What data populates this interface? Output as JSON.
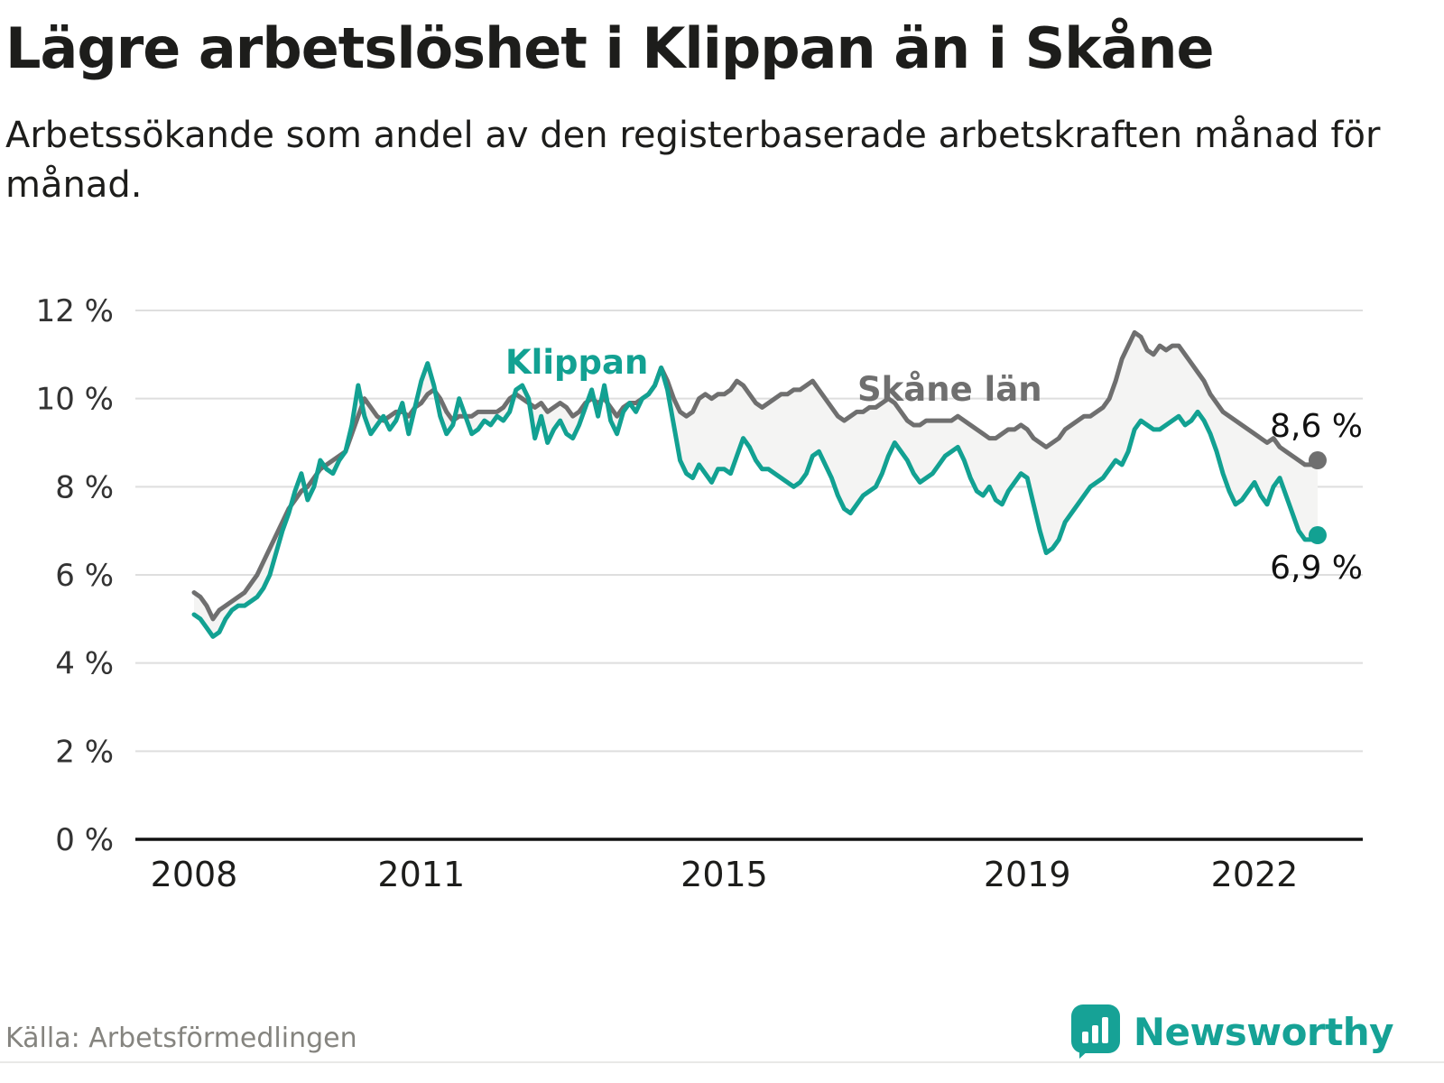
{
  "header": {
    "title": "Lägre arbetslöshet i Klippan än i Skåne",
    "subtitle": "Arbetssökande som andel av den registerbaserade arbetskraften månad för månad."
  },
  "footer": {
    "source": "Källa: Arbetsförmedlingen",
    "brand": "Newsworthy"
  },
  "colors": {
    "klippan": "#12a192",
    "skane": "#6f6f6f",
    "band": "#f4f4f3",
    "grid": "#dedede",
    "axis": "#111111",
    "brand": "#16a296"
  },
  "chart_data": {
    "type": "line",
    "title": "Lägre arbetslöshet i Klippan än i Skåne",
    "unit": "%",
    "x_start": "2008-01",
    "x_end": "2022-11",
    "frequency": "monthly",
    "ylim": [
      0,
      12
    ],
    "grid": true,
    "legend_position": "inline-labels",
    "y_ticks": [
      {
        "v": 0,
        "label": "0 %"
      },
      {
        "v": 2,
        "label": "2 %"
      },
      {
        "v": 4,
        "label": "4 %"
      },
      {
        "v": 6,
        "label": "6 %"
      },
      {
        "v": 8,
        "label": "8 %"
      },
      {
        "v": 10,
        "label": "10 %"
      },
      {
        "v": 12,
        "label": "12 %"
      }
    ],
    "x_ticks": [
      {
        "v": 2008,
        "label": "2008"
      },
      {
        "v": 2011,
        "label": "2011"
      },
      {
        "v": 2015,
        "label": "2015"
      },
      {
        "v": 2019,
        "label": "2019"
      },
      {
        "v": 2022,
        "label": "2022"
      }
    ],
    "series": [
      {
        "name": "Klippan",
        "end_value_label": "6,9 %",
        "values": [
          5.1,
          5.0,
          4.8,
          4.6,
          4.7,
          5.0,
          5.2,
          5.3,
          5.3,
          5.4,
          5.5,
          5.7,
          6.0,
          6.5,
          7.0,
          7.4,
          7.9,
          8.3,
          7.7,
          8.0,
          8.6,
          8.4,
          8.3,
          8.6,
          8.8,
          9.4,
          10.3,
          9.6,
          9.2,
          9.4,
          9.6,
          9.3,
          9.5,
          9.9,
          9.2,
          9.8,
          10.4,
          10.8,
          10.3,
          9.6,
          9.2,
          9.4,
          10.0,
          9.6,
          9.2,
          9.3,
          9.5,
          9.4,
          9.6,
          9.5,
          9.7,
          10.2,
          10.3,
          10.0,
          9.1,
          9.6,
          9.0,
          9.3,
          9.5,
          9.2,
          9.1,
          9.4,
          9.8,
          10.2,
          9.6,
          10.3,
          9.5,
          9.2,
          9.7,
          9.9,
          9.7,
          10.0,
          10.1,
          10.3,
          10.7,
          10.2,
          9.4,
          8.6,
          8.3,
          8.2,
          8.5,
          8.3,
          8.1,
          8.4,
          8.4,
          8.3,
          8.7,
          9.1,
          8.9,
          8.6,
          8.4,
          8.4,
          8.3,
          8.2,
          8.1,
          8.0,
          8.1,
          8.3,
          8.7,
          8.8,
          8.5,
          8.2,
          7.8,
          7.5,
          7.4,
          7.6,
          7.8,
          7.9,
          8.0,
          8.3,
          8.7,
          9.0,
          8.8,
          8.6,
          8.3,
          8.1,
          8.2,
          8.3,
          8.5,
          8.7,
          8.8,
          8.9,
          8.6,
          8.2,
          7.9,
          7.8,
          8.0,
          7.7,
          7.6,
          7.9,
          8.1,
          8.3,
          8.2,
          7.6,
          7.0,
          6.5,
          6.6,
          6.8,
          7.2,
          7.4,
          7.6,
          7.8,
          8.0,
          8.1,
          8.2,
          8.4,
          8.6,
          8.5,
          8.8,
          9.3,
          9.5,
          9.4,
          9.3,
          9.3,
          9.4,
          9.5,
          9.6,
          9.4,
          9.5,
          9.7,
          9.5,
          9.2,
          8.8,
          8.3,
          7.9,
          7.6,
          7.7,
          7.9,
          8.1,
          7.8,
          7.6,
          8.0,
          8.2,
          7.8,
          7.4,
          7.0,
          6.8,
          6.8,
          6.9
        ]
      },
      {
        "name": "Skåne län",
        "end_value_label": "8,6 %",
        "values": [
          5.6,
          5.5,
          5.3,
          5.0,
          5.2,
          5.3,
          5.4,
          5.5,
          5.6,
          5.8,
          6.0,
          6.3,
          6.6,
          6.9,
          7.2,
          7.5,
          7.7,
          7.9,
          8.0,
          8.2,
          8.4,
          8.5,
          8.6,
          8.7,
          8.8,
          9.2,
          9.6,
          10.0,
          9.8,
          9.6,
          9.5,
          9.6,
          9.7,
          9.7,
          9.6,
          9.8,
          9.9,
          10.1,
          10.2,
          10.0,
          9.7,
          9.5,
          9.6,
          9.6,
          9.6,
          9.7,
          9.7,
          9.7,
          9.7,
          9.8,
          10.0,
          10.1,
          10.0,
          9.9,
          9.8,
          9.9,
          9.7,
          9.8,
          9.9,
          9.8,
          9.6,
          9.7,
          9.9,
          10.0,
          9.9,
          10.0,
          9.8,
          9.6,
          9.8,
          9.9,
          9.9,
          10.0,
          10.1,
          10.3,
          10.7,
          10.4,
          10.0,
          9.7,
          9.6,
          9.7,
          10.0,
          10.1,
          10.0,
          10.1,
          10.1,
          10.2,
          10.4,
          10.3,
          10.1,
          9.9,
          9.8,
          9.9,
          10.0,
          10.1,
          10.1,
          10.2,
          10.2,
          10.3,
          10.4,
          10.2,
          10.0,
          9.8,
          9.6,
          9.5,
          9.6,
          9.7,
          9.7,
          9.8,
          9.8,
          9.9,
          10.0,
          9.9,
          9.7,
          9.5,
          9.4,
          9.4,
          9.5,
          9.5,
          9.5,
          9.5,
          9.5,
          9.6,
          9.5,
          9.4,
          9.3,
          9.2,
          9.1,
          9.1,
          9.2,
          9.3,
          9.3,
          9.4,
          9.3,
          9.1,
          9.0,
          8.9,
          9.0,
          9.1,
          9.3,
          9.4,
          9.5,
          9.6,
          9.6,
          9.7,
          9.8,
          10.0,
          10.4,
          10.9,
          11.2,
          11.5,
          11.4,
          11.1,
          11.0,
          11.2,
          11.1,
          11.2,
          11.2,
          11.0,
          10.8,
          10.6,
          10.4,
          10.1,
          9.9,
          9.7,
          9.6,
          9.5,
          9.4,
          9.3,
          9.2,
          9.1,
          9.0,
          9.1,
          8.9,
          8.8,
          8.7,
          8.6,
          8.5,
          8.5,
          8.6
        ]
      }
    ]
  }
}
